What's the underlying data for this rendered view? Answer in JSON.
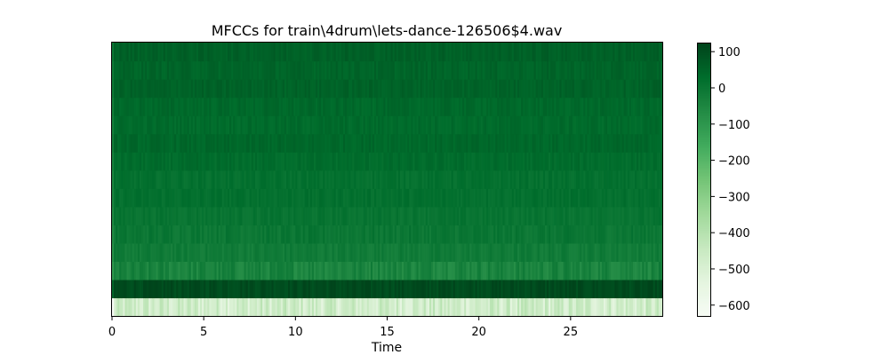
{
  "chart_data": {
    "type": "heatmap",
    "title": "MFCCs for train\\4drum\\lets-dance-126506$4.wav",
    "xlabel": "Time",
    "ylabel": "",
    "xlim": [
      0,
      30
    ],
    "x_ticks": [
      0,
      5,
      10,
      15,
      20,
      25
    ],
    "x_tick_labels": [
      "0",
      "5",
      "10",
      "15",
      "20",
      "25"
    ],
    "time_frames": 300,
    "coefficients": 15,
    "colormap": "Greens",
    "colorbar": {
      "range": [
        -630,
        125
      ],
      "ticks": [
        100,
        0,
        -100,
        -200,
        -300,
        -400,
        -500,
        -600
      ],
      "tick_labels": [
        "100",
        "0",
        "−100",
        "−200",
        "−300",
        "−400",
        "−500",
        "−600"
      ]
    },
    "coefficient_means_bottom_to_top": [
      -470,
      110,
      -40,
      -15,
      0,
      8,
      20,
      18,
      30,
      42,
      35,
      40,
      55,
      50,
      60
    ],
    "coefficient_variation": [
      70,
      20,
      35,
      20,
      20,
      15,
      15,
      15,
      15,
      15,
      15,
      15,
      15,
      15,
      15
    ],
    "first_frame_value": -630
  }
}
